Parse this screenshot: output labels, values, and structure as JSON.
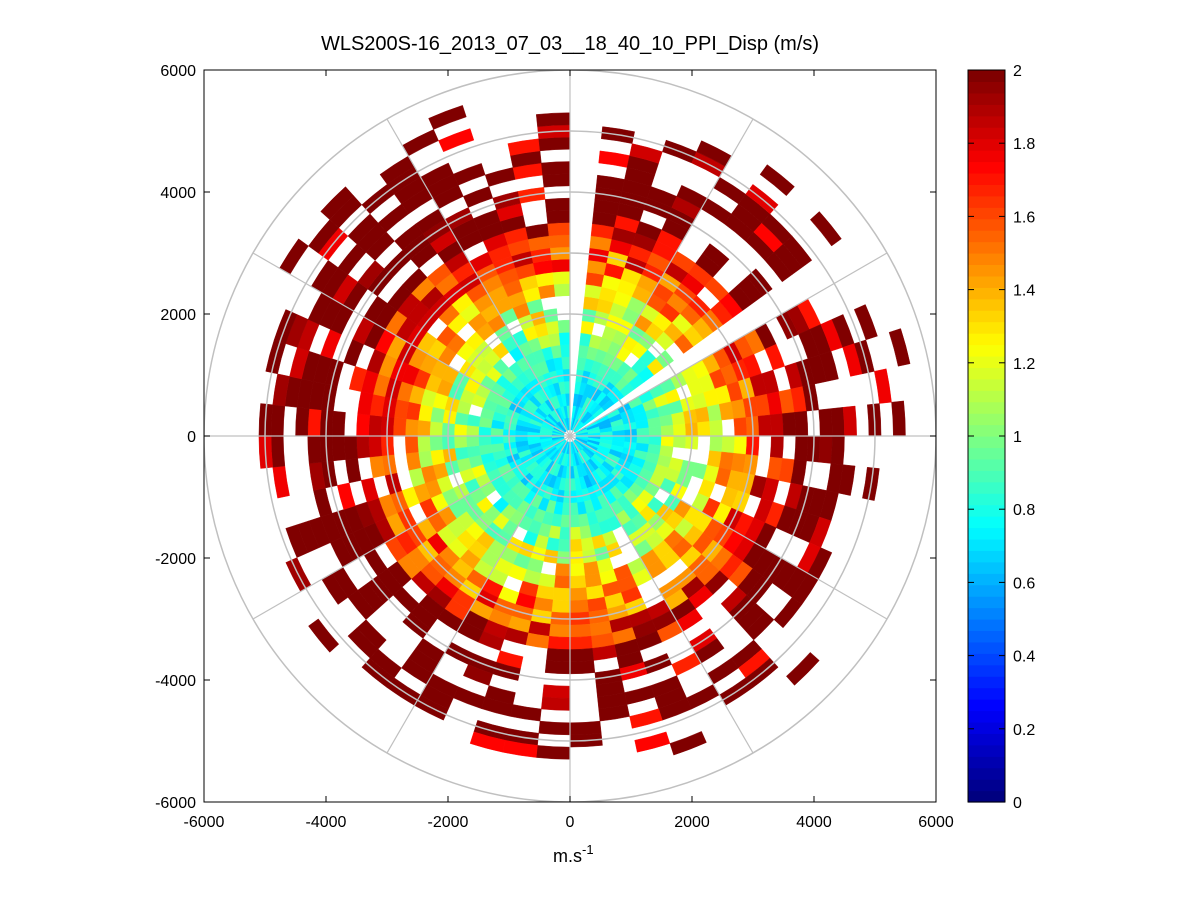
{
  "chart_data": {
    "type": "heatmap",
    "subtype": "polar-ppi",
    "title": "WLS200S-16_2013_07_03__18_40_10_PPI_Disp (m/s)",
    "xlabel_main": "m.s",
    "xlabel_sup": "-1",
    "ylabel": "",
    "xlim": [
      -6000,
      6000
    ],
    "ylim": [
      -6000,
      6000
    ],
    "x_ticks": [
      -6000,
      -4000,
      -2000,
      0,
      2000,
      4000,
      6000
    ],
    "y_ticks": [
      6000,
      4000,
      2000,
      0,
      -2000,
      -4000,
      -6000
    ],
    "x_tick_labels": [
      "-6000",
      "-4000",
      "-2000",
      "0",
      "2000",
      "4000",
      "6000"
    ],
    "y_tick_labels": [
      "6000",
      "4000",
      "2000",
      "0",
      "-2000",
      "-4000",
      "-6000"
    ],
    "colorbar": {
      "min": 0,
      "max": 2,
      "ticks": [
        0,
        0.2,
        0.4,
        0.6,
        0.8,
        1,
        1.2,
        1.4,
        1.6,
        1.8,
        2
      ],
      "tick_labels": [
        "0",
        "0.2",
        "0.4",
        "0.6",
        "0.8",
        "1",
        "1.2",
        "1.4",
        "1.6",
        "1.8",
        "2"
      ],
      "colormap": "jet",
      "levels": 64
    },
    "polar_grid": {
      "rings": [
        1000,
        2000,
        3000,
        4000,
        5000,
        6000
      ],
      "spokes_deg": [
        0,
        30,
        60,
        90,
        120,
        150,
        180,
        210,
        240,
        270,
        300,
        330
      ]
    },
    "range_gate_spacing": 200,
    "max_range": 6000,
    "azimuth_step_deg": 6,
    "radial_profile": [
      {
        "r": 0,
        "value": 0.7
      },
      {
        "r": 1000,
        "value": 0.75
      },
      {
        "r": 1500,
        "value": 0.95
      },
      {
        "r": 2000,
        "value": 1.15
      },
      {
        "r": 2500,
        "value": 1.35
      },
      {
        "r": 3000,
        "value": 1.6
      },
      {
        "r": 3500,
        "value": 1.8
      },
      {
        "r": 4000,
        "value": 1.95
      },
      {
        "r": 5000,
        "value": 2.0
      },
      {
        "r": 6000,
        "value": 2.0
      }
    ],
    "data_gaps_bearing_deg": [
      [
        -1,
        3
      ],
      [
        6,
        7
      ],
      [
        35,
        38
      ],
      [
        56,
        62
      ]
    ],
    "coverage_max_range_by_sector": [
      {
        "from_deg": 0,
        "to_deg": 90,
        "range": 5800
      },
      {
        "from_deg": 90,
        "to_deg": 135,
        "range": 5200
      },
      {
        "from_deg": 135,
        "to_deg": 225,
        "range": 5800
      },
      {
        "from_deg": 225,
        "to_deg": 300,
        "range": 5500
      },
      {
        "from_deg": 300,
        "to_deg": 360,
        "range": 6000
      }
    ],
    "colors": {
      "axes": "#000000",
      "grid": "#c0c0c0",
      "background": "#ffffff"
    }
  }
}
